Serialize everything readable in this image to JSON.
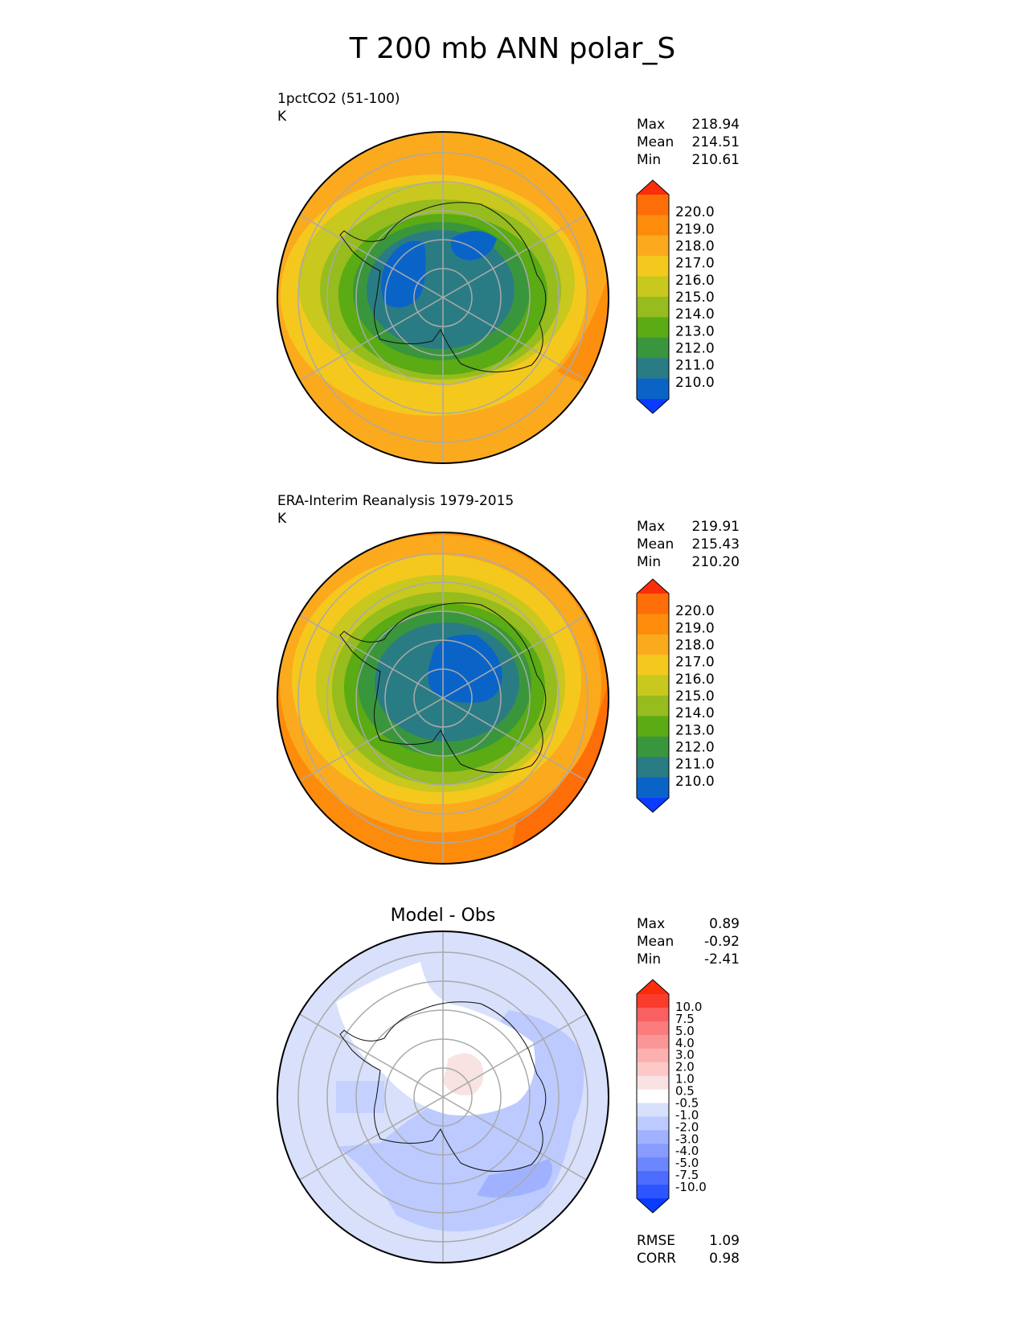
{
  "title": "T 200 mb ANN polar_S",
  "palettes": {
    "temperature": [
      "#0a3cff",
      "#0a64c8",
      "#2a7c84",
      "#3a963c",
      "#5aab14",
      "#96bc1e",
      "#c8c81e",
      "#f5c81e",
      "#fbaa1e",
      "#fd8c0c",
      "#fd6e08",
      "#fd2d0a"
    ],
    "difference": [
      "#0a3cff",
      "#2d55ff",
      "#4b6cff",
      "#6b87ff",
      "#889cff",
      "#a0b2ff",
      "#bccaff",
      "#d8e0fb",
      "#ffffff",
      "#f8e2e2",
      "#fcc8c8",
      "#fcb0b0",
      "#fb9696",
      "#fa7c7c",
      "#fa6060",
      "#fa3c2d",
      "#fa2d0a"
    ]
  },
  "panels": [
    {
      "id": "test",
      "name": "1pctCO2 (51-100)",
      "units": "K",
      "stats": [
        {
          "label": "Max",
          "value": "218.94"
        },
        {
          "label": "Mean",
          "value": "214.51"
        },
        {
          "label": "Min",
          "value": "210.61"
        }
      ]
    },
    {
      "id": "ref",
      "name": "ERA-Interim Reanalysis 1979-2015",
      "units": "K",
      "stats": [
        {
          "label": "Max",
          "value": "219.91"
        },
        {
          "label": "Mean",
          "value": "215.43"
        },
        {
          "label": "Min",
          "value": "210.20"
        }
      ]
    },
    {
      "id": "diff",
      "name": "Model - Obs",
      "stats": [
        {
          "label": "Max",
          "value": "0.89"
        },
        {
          "label": "Mean",
          "value": "-0.92"
        },
        {
          "label": "Min",
          "value": "-2.41"
        }
      ],
      "metrics": [
        {
          "label": "RMSE",
          "value": "1.09"
        },
        {
          "label": "CORR",
          "value": "0.98"
        }
      ]
    }
  ],
  "colorbars": {
    "temperature": [
      "220.0",
      "219.0",
      "218.0",
      "217.0",
      "216.0",
      "215.0",
      "214.0",
      "213.0",
      "212.0",
      "211.0",
      "210.0"
    ],
    "difference": [
      "10.0",
      "7.5",
      "5.0",
      "4.0",
      "3.0",
      "2.0",
      "1.0",
      "0.5",
      "-0.5",
      "-1.0",
      "-2.0",
      "-3.0",
      "-4.0",
      "-5.0",
      "-7.5",
      "-10.0"
    ]
  },
  "chart_data": [
    {
      "type": "heatmap",
      "projection": "south polar stereographic",
      "title": "1pctCO2 (51-100)",
      "units": "K",
      "levels": [
        210,
        211,
        212,
        213,
        214,
        215,
        216,
        217,
        218,
        219,
        220
      ],
      "field": {
        "center": {
          "min_region_1": 210.6,
          "min_region_2": 210.7
        },
        "lat_-85": 211.0,
        "lat_-80": 211.5,
        "lat_-75": 212.5,
        "lat_-70": 213.5,
        "lat_-65": 215.0,
        "lat_-60": 216.5,
        "lat_-55": 217.5,
        "lat_-50": 218.0
      },
      "stats": {
        "max": 218.94,
        "mean": 214.51,
        "min": 210.61
      }
    },
    {
      "type": "heatmap",
      "projection": "south polar stereographic",
      "title": "ERA-Interim Reanalysis 1979-2015",
      "units": "K",
      "levels": [
        210,
        211,
        212,
        213,
        214,
        215,
        216,
        217,
        218,
        219,
        220
      ],
      "field": {
        "center": 210.3,
        "lat_-85": 211.0,
        "lat_-80": 211.5,
        "lat_-75": 212.5,
        "lat_-70": 214.0,
        "lat_-65": 215.5,
        "lat_-60": 216.5,
        "lat_-55": 217.5,
        "lat_-50": 218.5
      },
      "stats": {
        "max": 219.91,
        "mean": 215.43,
        "min": 210.2
      }
    },
    {
      "type": "heatmap",
      "projection": "south polar stereographic",
      "title": "Model - Obs",
      "units": "K",
      "levels": [
        -10,
        -7.5,
        -5,
        -4,
        -3,
        -2,
        -1,
        -0.5,
        0.5,
        1,
        2,
        3,
        4,
        5,
        7.5,
        10
      ],
      "field": {
        "pole_region": 0.7,
        "antarctic_plateau": 0.0,
        "east_antarctic_coast": -1.5,
        "southern_ocean_sector": -1.8,
        "outer_ring": -0.8
      },
      "stats": {
        "max": 0.89,
        "mean": -0.92,
        "min": -2.41,
        "rmse": 1.09,
        "corr": 0.98
      }
    }
  ]
}
